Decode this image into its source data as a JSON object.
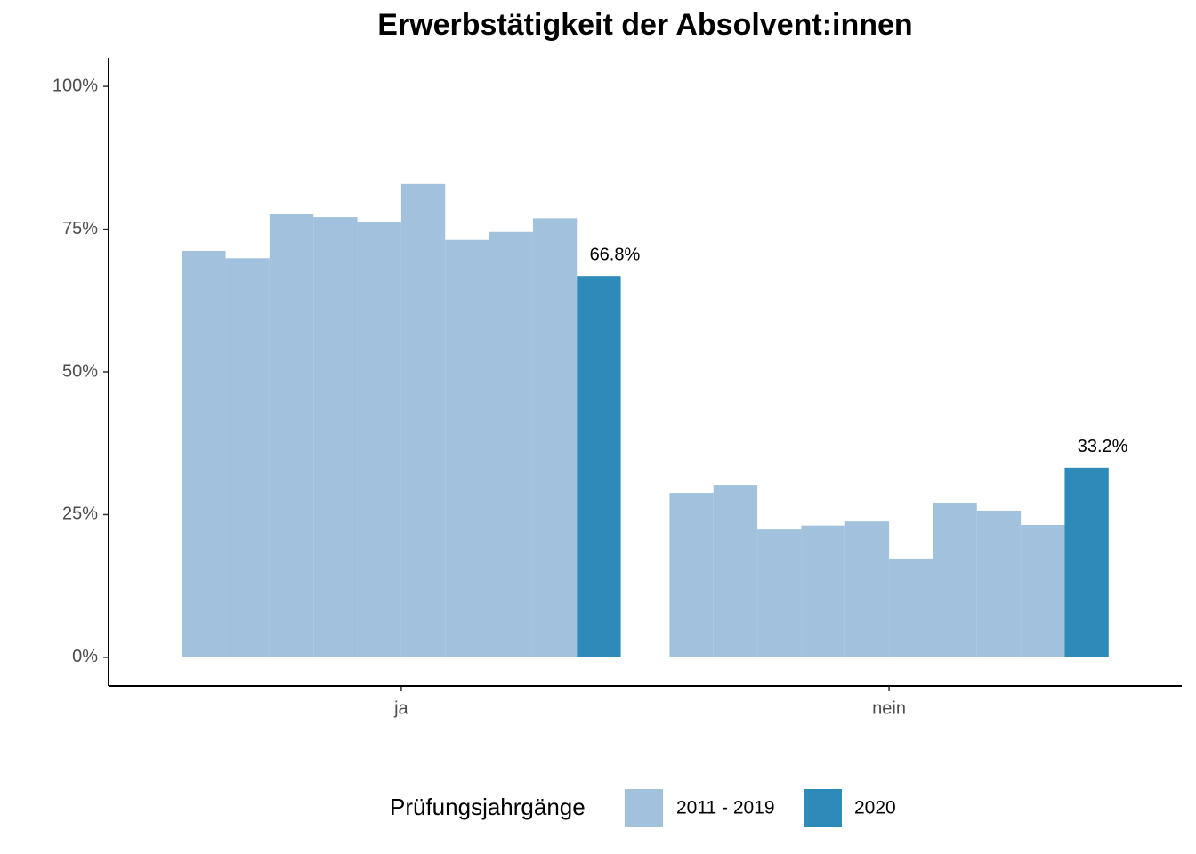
{
  "chart_data": {
    "type": "bar",
    "title": "Erwerbstätigkeit der Absolvent:innen",
    "categories": [
      "ja",
      "nein"
    ],
    "series": [
      {
        "name": "2011 - 2019",
        "color": "#a1c1dc",
        "values": [
          [
            71.2,
            69.9,
            77.6,
            77.1,
            76.3,
            82.9,
            73.1,
            74.5,
            76.9
          ],
          [
            28.8,
            30.2,
            22.4,
            23.1,
            23.8,
            17.3,
            27.1,
            25.7,
            23.2
          ]
        ]
      },
      {
        "name": "2020",
        "color": "#2e8ab8",
        "values": [
          66.8,
          33.2
        ],
        "value_labels": [
          "66.8%",
          "33.2%"
        ]
      }
    ],
    "legend_title": "Prüfungsjahrgänge",
    "legend": "bottom",
    "ylim": [
      -5,
      105
    ],
    "yticks": [
      {
        "value": 0,
        "label": "0%"
      },
      {
        "value": 25,
        "label": "25%"
      },
      {
        "value": 50,
        "label": "50%"
      },
      {
        "value": 75,
        "label": "75%"
      },
      {
        "value": 100,
        "label": "100%"
      }
    ]
  }
}
